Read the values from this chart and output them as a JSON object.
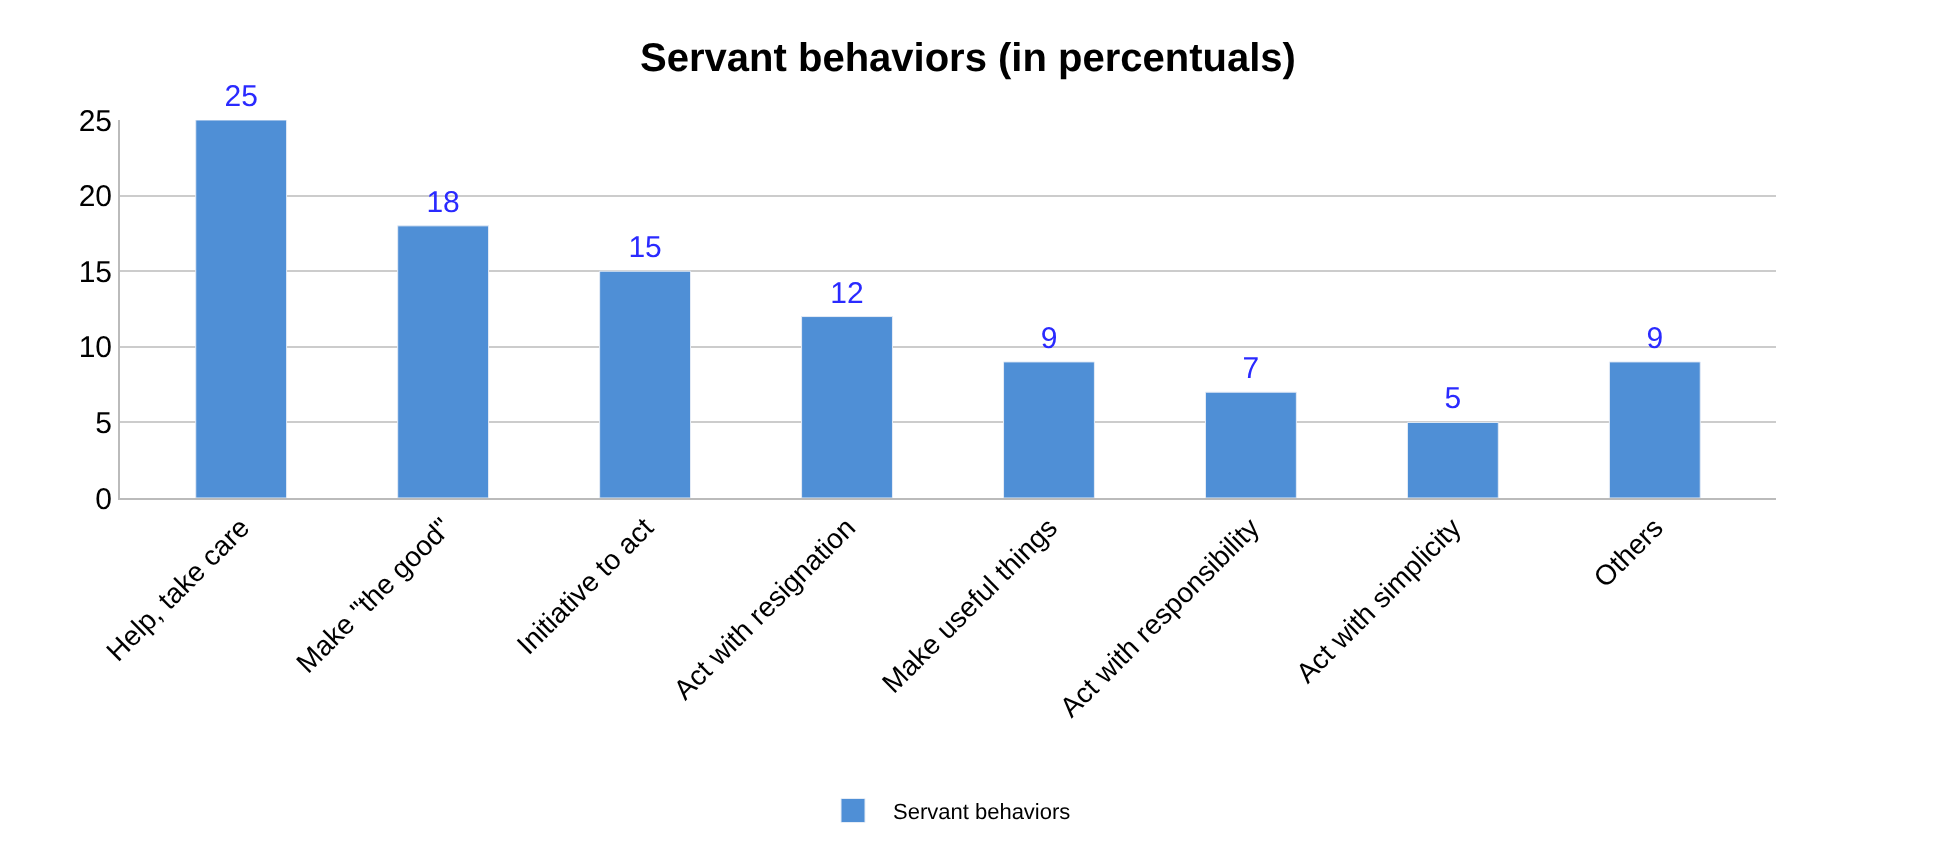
{
  "chart_data": {
    "type": "bar",
    "title": "Servant behaviors (in percentuals)",
    "categories": [
      "Help, take care",
      "Make \"the good\"",
      "Initiative to act",
      "Act with resignation",
      "Make useful things",
      "Act with responsibility",
      "Act with simplicity",
      "Others"
    ],
    "series": [
      {
        "name": "Servant behaviors",
        "color": "#4f8fd6",
        "values": [
          25,
          18,
          15,
          12,
          9,
          7,
          5,
          9
        ]
      }
    ],
    "ylim": [
      0,
      25
    ],
    "yticks": [
      0,
      5,
      10,
      15,
      20,
      25
    ],
    "grid": "y",
    "legend": "bottom",
    "data_labels": true
  }
}
